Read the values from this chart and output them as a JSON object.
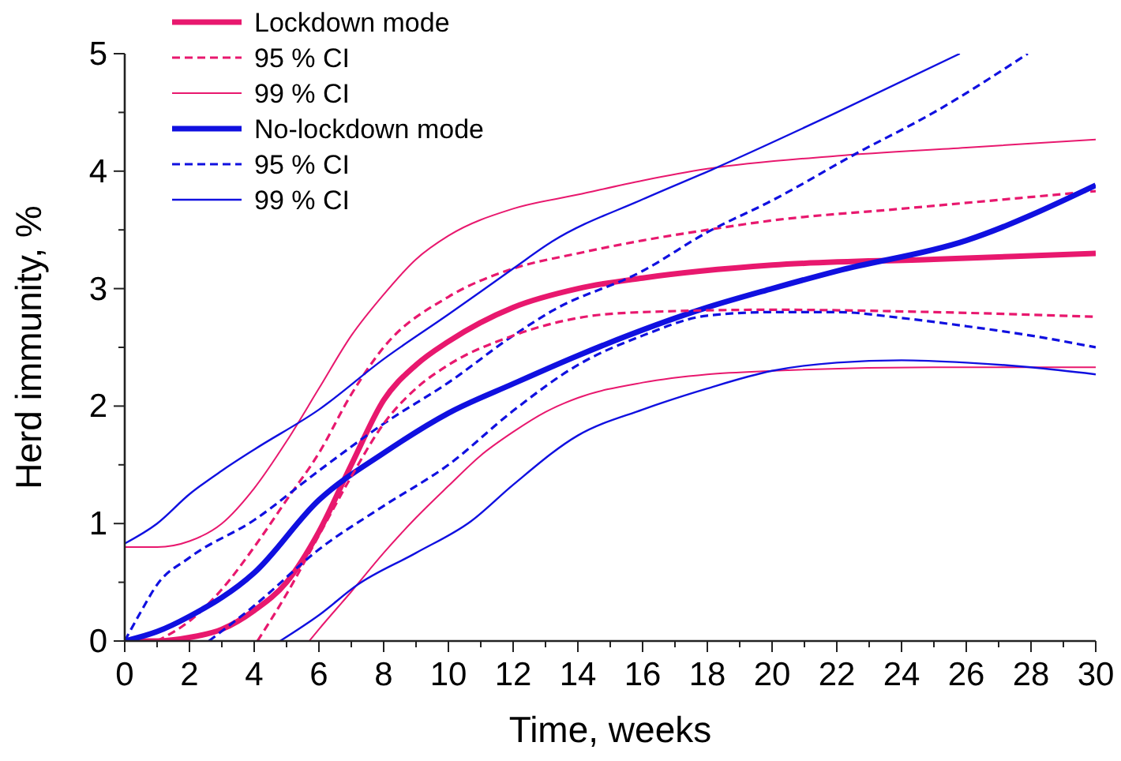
{
  "chart_data": {
    "type": "line",
    "xlabel": "Time, weeks",
    "ylabel": "Herd immunity, %",
    "xlim": [
      0,
      30
    ],
    "ylim": [
      0,
      5
    ],
    "xticks": [
      0,
      {
        "value": 1,
        "label": null
      },
      2,
      {
        "value": 3,
        "label": null
      },
      4,
      {
        "value": 5,
        "label": null
      },
      6,
      {
        "value": 7,
        "label": null
      },
      8,
      {
        "value": 9,
        "label": null
      },
      10,
      {
        "value": 11,
        "label": null
      },
      12,
      {
        "value": 13,
        "label": null
      },
      14,
      {
        "value": 15,
        "label": null
      },
      16,
      {
        "value": 17,
        "label": null
      },
      18,
      {
        "value": 19,
        "label": null
      },
      20,
      {
        "value": 21,
        "label": null
      },
      22,
      {
        "value": 23,
        "label": null
      },
      24,
      {
        "value": 25,
        "label": null
      },
      26,
      {
        "value": 27,
        "label": null
      },
      28,
      {
        "value": 29,
        "label": null
      },
      30
    ],
    "yticks": [
      0,
      {
        "value": 0.5,
        "label": null
      },
      1,
      {
        "value": 1.5,
        "label": null
      },
      2,
      {
        "value": 2.5,
        "label": null
      },
      3,
      {
        "value": 3.5,
        "label": null
      },
      4,
      {
        "value": 4.5,
        "label": null
      },
      5
    ],
    "grid": false,
    "legend": "top left",
    "series": [
      {
        "name": "Lockdown mode",
        "color": "#e8186e",
        "line_style": "solid",
        "x": [
          0,
          1,
          2,
          3,
          4,
          5,
          6,
          7,
          8,
          9,
          10,
          12,
          14,
          16,
          20,
          25,
          30
        ],
        "values": [
          0,
          0,
          0.03,
          0.1,
          0.26,
          0.5,
          0.93,
          1.5,
          2.05,
          2.35,
          2.55,
          2.84,
          3.0,
          3.09,
          3.2,
          3.25,
          3.3
        ]
      },
      {
        "name": "95 % CI",
        "color": "#e8186e",
        "line_style": "dashed",
        "x": [
          1,
          2,
          3,
          4,
          5,
          6,
          7,
          8,
          10,
          12,
          14,
          16,
          18,
          20,
          24,
          30
        ],
        "values": [
          0,
          0.17,
          0.44,
          0.8,
          1.2,
          1.6,
          2.1,
          2.5,
          2.93,
          3.17,
          3.3,
          3.41,
          3.5,
          3.58,
          3.68,
          3.83
        ]
      },
      {
        "name": "99 % CI",
        "color": "#e8186e",
        "line_style": "solid",
        "x": [
          0,
          1,
          2,
          3,
          4,
          5,
          6,
          7,
          8,
          9,
          10,
          12,
          14,
          16,
          18,
          22,
          26,
          30
        ],
        "values": [
          0.8,
          0.8,
          0.85,
          1.0,
          1.3,
          1.7,
          2.15,
          2.6,
          2.95,
          3.25,
          3.45,
          3.68,
          3.8,
          3.92,
          4.02,
          4.13,
          4.2,
          4.27
        ]
      },
      {
        "name": "No-lockdown mode",
        "color": "#1010e0",
        "line_style": "solid",
        "x": [
          0,
          1,
          2,
          4,
          6,
          8,
          10,
          12,
          14,
          18,
          20,
          22,
          26,
          30
        ],
        "values": [
          0,
          0.08,
          0.21,
          0.58,
          1.2,
          1.6,
          1.94,
          2.19,
          2.43,
          2.84,
          3.0,
          3.15,
          3.41,
          3.88
        ]
      },
      {
        "name": "95 % CI",
        "color": "#1010e0",
        "line_style": "dashed",
        "x": [
          0,
          0.5,
          1,
          2,
          4,
          6,
          8,
          10,
          12,
          13.2,
          16,
          18,
          20,
          22.6,
          25,
          27.9
        ],
        "values": [
          0,
          0.25,
          0.48,
          0.71,
          1.03,
          1.45,
          1.85,
          2.2,
          2.6,
          2.81,
          3.15,
          3.48,
          3.75,
          4.15,
          4.5,
          5
        ]
      },
      {
        "name": "99 % CI",
        "color": "#1010e0",
        "line_style": "solid",
        "x": [
          0,
          1,
          2,
          3,
          4,
          6,
          8,
          10,
          12,
          13.2,
          16,
          18.2,
          22,
          25.8
        ],
        "values": [
          0.83,
          1.0,
          1.25,
          1.45,
          1.63,
          1.97,
          2.4,
          2.78,
          3.17,
          3.4,
          3.76,
          4.02,
          4.5,
          5
        ]
      },
      {
        "color": "#e8186e",
        "line_style": "dashed",
        "x": [
          4.1,
          5,
          6,
          7,
          8,
          9,
          10,
          12,
          14,
          16,
          20,
          25,
          30
        ],
        "values": [
          0,
          0.4,
          0.9,
          1.4,
          1.85,
          2.15,
          2.35,
          2.6,
          2.75,
          2.8,
          2.82,
          2.8,
          2.76
        ]
      },
      {
        "color": "#e8186e",
        "line_style": "solid",
        "x": [
          5.7,
          6,
          7,
          8,
          9,
          10,
          11,
          12,
          13,
          14,
          16,
          18,
          20,
          25,
          30
        ],
        "values": [
          0,
          0.1,
          0.42,
          0.75,
          1.05,
          1.32,
          1.58,
          1.78,
          1.95,
          2.07,
          2.2,
          2.27,
          2.3,
          2.33,
          2.33
        ]
      },
      {
        "color": "#1010e0",
        "line_style": "dashed",
        "x": [
          2.6,
          4,
          6,
          8,
          10,
          12,
          14,
          16,
          18,
          20,
          22,
          24,
          26,
          28,
          30
        ],
        "values": [
          0,
          0.3,
          0.78,
          1.15,
          1.5,
          1.96,
          2.35,
          2.6,
          2.77,
          2.8,
          2.8,
          2.75,
          2.68,
          2.6,
          2.5
        ]
      },
      {
        "color": "#1010e0",
        "line_style": "solid",
        "x": [
          4.8,
          6,
          7.2,
          9,
          10.7,
          12,
          14,
          16,
          18,
          20,
          22,
          24,
          26,
          28,
          30
        ],
        "values": [
          0,
          0.22,
          0.48,
          0.75,
          1.02,
          1.33,
          1.75,
          1.97,
          2.15,
          2.3,
          2.37,
          2.39,
          2.37,
          2.33,
          2.27
        ]
      }
    ]
  }
}
